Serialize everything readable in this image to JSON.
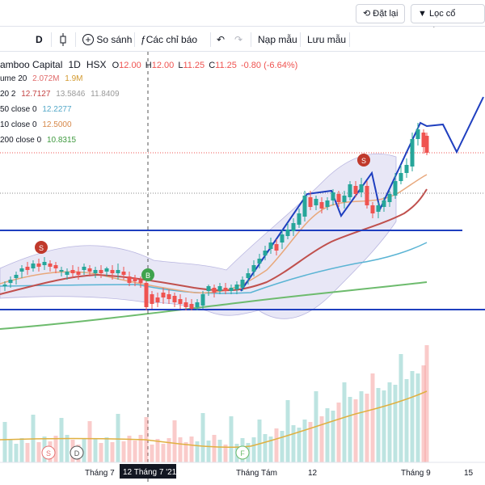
{
  "topbar": {
    "reset_label": "Đặt lại",
    "filter_label": "Lọc cổ phiếu"
  },
  "toolbar": {
    "interval": "D",
    "compare": "So sánh",
    "indicators": "Các chỉ báo",
    "load": "Nạp mẫu",
    "save": "Lưu mẫu"
  },
  "symbol": {
    "name": "amboo Capital",
    "interval": "1D",
    "exchange": "HSX",
    "o_label": "O",
    "o": "12.00",
    "h_label": "H",
    "h": "12.00",
    "l_label": "L",
    "l": "11.25",
    "c_label": "C",
    "c": "11.25",
    "change": "-0.80 (-6.64%)"
  },
  "indicators": [
    {
      "label": "ume 20",
      "v1": "2.072M",
      "v2": "1.9M",
      "c1": "#e06a6a",
      "c2": "#e0a040"
    },
    {
      "label": "20 2",
      "v1": "12.7127",
      "v2": "13.5846",
      "v3": "11.8409",
      "c1": "#c44444",
      "c2": "#999999"
    },
    {
      "label": "50 close 0",
      "v1": "12.2277",
      "c1": "#55a9c9"
    },
    {
      "label": "10 close 0",
      "v1": "12.5000",
      "c1": "#e0a070"
    },
    {
      "label": "200 close 0",
      "v1": "10.8315",
      "c1": "#55aa55"
    }
  ],
  "colors": {
    "up": "#26a69a",
    "down": "#ef5350",
    "ma20": "#c0504d",
    "ma10": "#e8a87c",
    "ma50": "#5ab4d4",
    "ma200": "#6dbb6d",
    "bands": "#c9c6e8",
    "trendline": "#1f3fbf"
  },
  "markers": {
    "sell": "S",
    "buy": "B",
    "dividend": "D",
    "financials": "F"
  },
  "xaxis": {
    "labels": [
      "Tháng 7",
      "Tháng Tám",
      "12",
      "Tháng 9",
      "15"
    ],
    "crosshair": "12 Tháng 7 '21"
  }
}
